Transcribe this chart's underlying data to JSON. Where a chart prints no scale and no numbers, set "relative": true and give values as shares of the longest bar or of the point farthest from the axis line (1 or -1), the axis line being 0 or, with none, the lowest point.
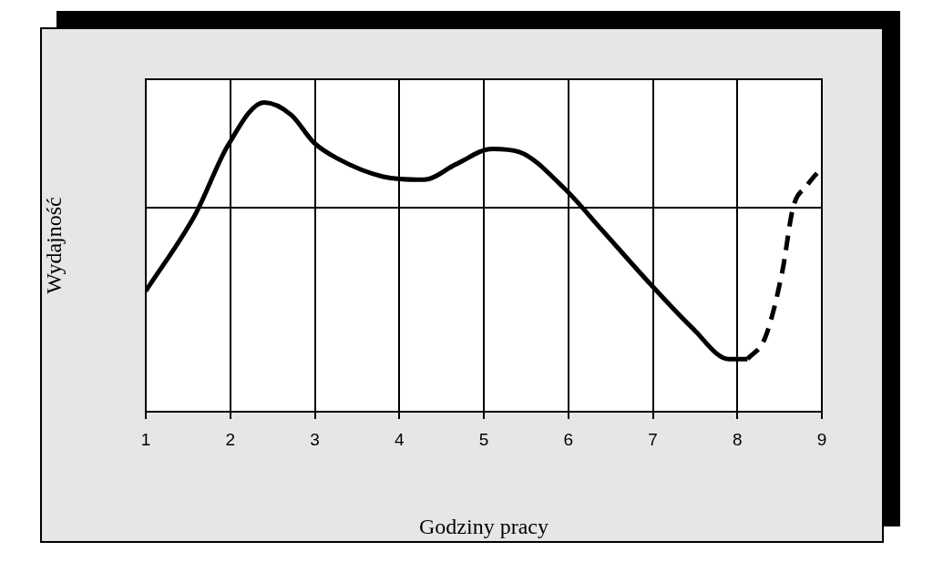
{
  "chart_data": {
    "type": "line",
    "relative": true,
    "xlabel": "Godziny pracy",
    "ylabel": "Wydajność",
    "xlim": [
      1,
      9
    ],
    "xticks": [
      1,
      2,
      3,
      4,
      5,
      6,
      7,
      8,
      9
    ],
    "grid": "x",
    "legend": false,
    "ref_lines": [
      {
        "axis": "y",
        "value": 0.66,
        "color": "#000000"
      }
    ],
    "series": [
      {
        "color": "#000000",
        "line_style": "solid",
        "x": [
          1,
          1.59,
          1.97,
          2.4,
          2.72,
          2.99,
          3.26,
          3.81,
          4.29,
          4.67,
          5.1,
          5.42,
          5.96,
          6.39,
          6.98,
          7.47,
          7.9,
          8.12
        ],
        "values": [
          0.39,
          0.64,
          0.86,
          1,
          0.96,
          0.87,
          0.82,
          0.76,
          0.75,
          0.8,
          0.85,
          0.84,
          0.72,
          0.59,
          0.41,
          0.27,
          0.17,
          0.17
        ]
      },
      {
        "color": "#000000",
        "line_style": "dashed",
        "x": [
          8.12,
          8.33,
          8.53,
          8.66,
          8.82,
          9
        ],
        "values": [
          0.17,
          0.24,
          0.45,
          0.66,
          0.73,
          0.79
        ]
      }
    ]
  }
}
